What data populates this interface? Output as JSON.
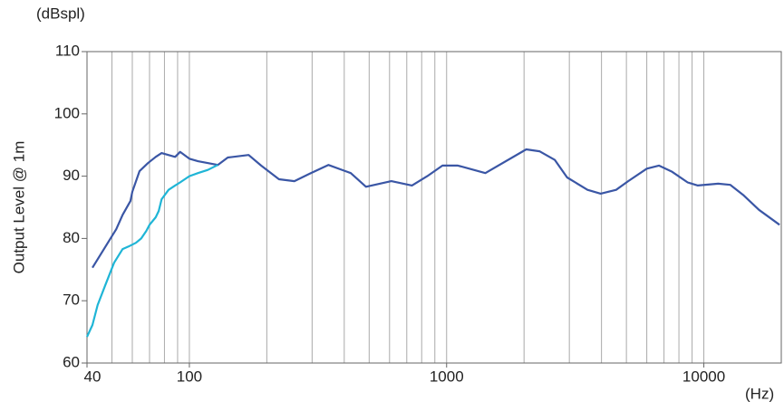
{
  "chart_data": {
    "type": "line",
    "y_label": "Output Level @ 1m",
    "y_unit": "(dBspl)",
    "x_unit": "(Hz)",
    "log_x": true,
    "xlim": [
      40,
      20000
    ],
    "xticks": [
      40,
      100,
      1000,
      10000
    ],
    "x_grid": [
      50,
      60,
      70,
      80,
      90,
      100,
      200,
      300,
      400,
      500,
      600,
      700,
      800,
      900,
      1000,
      2000,
      3000,
      4000,
      5000,
      6000,
      7000,
      8000,
      9000,
      10000
    ],
    "ylim": [
      60,
      110
    ],
    "yticks": [
      60,
      70,
      80,
      90,
      100,
      110
    ],
    "series": [
      {
        "color": "#3a56a5",
        "x": [
          42,
          52,
          55,
          59,
          60,
          64,
          69,
          74,
          78,
          88,
          92,
          100,
          108,
          129,
          141,
          170,
          190,
          223,
          256,
          294,
          347,
          424,
          486,
          610,
          733,
          841,
          964,
          1106,
          1415,
          2040,
          2296,
          2635,
          2940,
          3530,
          3970,
          4560,
          5080,
          6000,
          6690,
          7530,
          8650,
          9470,
          11370,
          12680,
          14290,
          16380,
          19700
        ],
        "values": [
          75.3,
          81.5,
          83.8,
          86,
          87.5,
          90.8,
          92.1,
          93.1,
          93.7,
          93.1,
          93.9,
          92.8,
          92.4,
          91.8,
          93,
          93.4,
          91.7,
          89.5,
          89.2,
          90.4,
          91.8,
          90.5,
          88.3,
          89.2,
          88.5,
          90,
          91.7,
          91.7,
          90.5,
          94.3,
          94,
          92.6,
          89.8,
          87.8,
          87.2,
          87.8,
          89.2,
          91.2,
          91.7,
          90.7,
          89,
          88.5,
          88.8,
          88.6,
          86.9,
          84.6,
          82.2
        ]
      },
      {
        "color": "#1fb5d6",
        "x": [
          40,
          42,
          44,
          47,
          51,
          55,
          58,
          62,
          65,
          68,
          70,
          74,
          76,
          78,
          83,
          88,
          92,
          100,
          108,
          118,
          129
        ],
        "values": [
          64.2,
          66.1,
          69.3,
          72.4,
          76.1,
          78.3,
          78.7,
          79.3,
          80,
          81.2,
          82.2,
          83.4,
          84.4,
          86.3,
          87.8,
          88.5,
          89,
          90,
          90.5,
          91,
          91.8
        ]
      }
    ]
  }
}
